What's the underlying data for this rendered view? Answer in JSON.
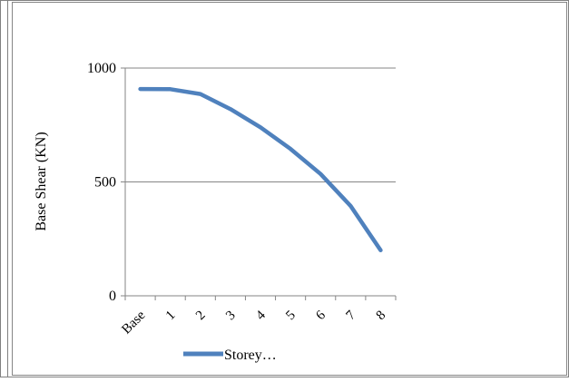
{
  "chart_data": {
    "type": "line",
    "categories": [
      "Base",
      "1",
      "2",
      "3",
      "4",
      "5",
      "6",
      "7",
      "8"
    ],
    "series": [
      {
        "name": "Storey…",
        "values": [
          908,
          907,
          886,
          820,
          740,
          645,
          535,
          395,
          200
        ]
      }
    ],
    "title": "",
    "xlabel": "",
    "ylabel": "Base Shear (KN)",
    "ylim": [
      0,
      1000
    ],
    "yticks": [
      0,
      500,
      1000
    ],
    "ytick_labels": [
      "0",
      "500",
      "1000"
    ],
    "grid": "horizontal",
    "legend": "bottom",
    "colors": {
      "series": "#4f81bd",
      "grid": "#868686",
      "axis": "#868686",
      "border": "#868686"
    }
  }
}
